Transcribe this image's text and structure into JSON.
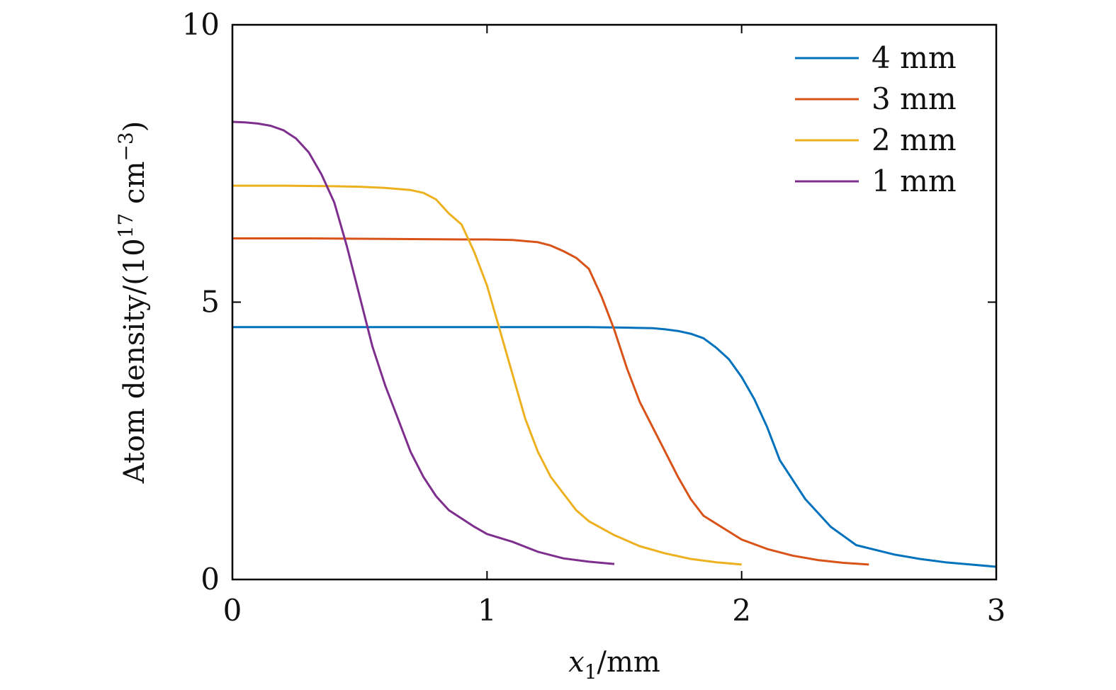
{
  "chart_data": {
    "type": "line",
    "xlabel": {
      "var": "x",
      "sub": "1",
      "unit": "/mm"
    },
    "ylabel": {
      "main": "Atom density/(10",
      "exp1": "17",
      "mid": " cm",
      "exp2": "−3",
      "end": ")"
    },
    "xlim": [
      0,
      3
    ],
    "ylim": [
      0,
      10
    ],
    "xticks": [
      0,
      1,
      2,
      3
    ],
    "xtick_labels": [
      "0",
      "1",
      "2",
      "3"
    ],
    "yticks": [
      0,
      5,
      10
    ],
    "ytick_labels": [
      "0",
      "5",
      "10"
    ],
    "grid": false,
    "legend_position": "top-right",
    "series": [
      {
        "name": "4 mm",
        "color": "#0072BD",
        "x": [
          0,
          0.3,
          0.6,
          0.9,
          1.2,
          1.4,
          1.55,
          1.65,
          1.7,
          1.75,
          1.8,
          1.85,
          1.9,
          1.95,
          2.0,
          2.05,
          2.1,
          2.15,
          2.25,
          2.35,
          2.45,
          2.6,
          2.7,
          2.8,
          2.9,
          3.0
        ],
        "y": [
          4.55,
          4.55,
          4.55,
          4.55,
          4.55,
          4.55,
          4.54,
          4.53,
          4.51,
          4.48,
          4.43,
          4.35,
          4.18,
          3.97,
          3.65,
          3.25,
          2.75,
          2.15,
          1.45,
          0.95,
          0.62,
          0.45,
          0.37,
          0.31,
          0.27,
          0.23
        ]
      },
      {
        "name": "3 mm",
        "color": "#D95319",
        "x": [
          0,
          0.3,
          0.6,
          0.9,
          1.0,
          1.1,
          1.2,
          1.25,
          1.3,
          1.35,
          1.4,
          1.45,
          1.5,
          1.55,
          1.6,
          1.7,
          1.75,
          1.8,
          1.85,
          2.0,
          2.1,
          2.2,
          2.3,
          2.4,
          2.5
        ],
        "y": [
          6.15,
          6.15,
          6.14,
          6.13,
          6.13,
          6.12,
          6.08,
          6.02,
          5.92,
          5.8,
          5.6,
          5.1,
          4.5,
          3.8,
          3.2,
          2.3,
          1.85,
          1.45,
          1.15,
          0.72,
          0.55,
          0.43,
          0.35,
          0.3,
          0.27
        ]
      },
      {
        "name": "2 mm",
        "color": "#EDB120",
        "x": [
          0,
          0.2,
          0.4,
          0.5,
          0.6,
          0.7,
          0.75,
          0.8,
          0.85,
          0.9,
          0.95,
          1.0,
          1.05,
          1.1,
          1.15,
          1.2,
          1.25,
          1.3,
          1.35,
          1.4,
          1.5,
          1.6,
          1.7,
          1.8,
          1.9,
          2.0
        ],
        "y": [
          7.1,
          7.1,
          7.09,
          7.08,
          7.06,
          7.02,
          6.97,
          6.85,
          6.6,
          6.4,
          5.9,
          5.3,
          4.5,
          3.7,
          2.9,
          2.3,
          1.85,
          1.55,
          1.25,
          1.05,
          0.8,
          0.6,
          0.47,
          0.37,
          0.31,
          0.27
        ]
      },
      {
        "name": "1 mm",
        "color": "#7E2F8E",
        "x": [
          0,
          0.05,
          0.1,
          0.15,
          0.2,
          0.25,
          0.3,
          0.35,
          0.4,
          0.45,
          0.5,
          0.55,
          0.6,
          0.65,
          0.7,
          0.75,
          0.8,
          0.85,
          0.9,
          0.95,
          1.0,
          1.1,
          1.2,
          1.3,
          1.4,
          1.5
        ],
        "y": [
          8.25,
          8.24,
          8.22,
          8.18,
          8.1,
          7.95,
          7.7,
          7.3,
          6.8,
          6.0,
          5.1,
          4.2,
          3.5,
          2.9,
          2.3,
          1.85,
          1.5,
          1.25,
          1.1,
          0.95,
          0.82,
          0.68,
          0.5,
          0.38,
          0.32,
          0.28
        ]
      }
    ]
  }
}
